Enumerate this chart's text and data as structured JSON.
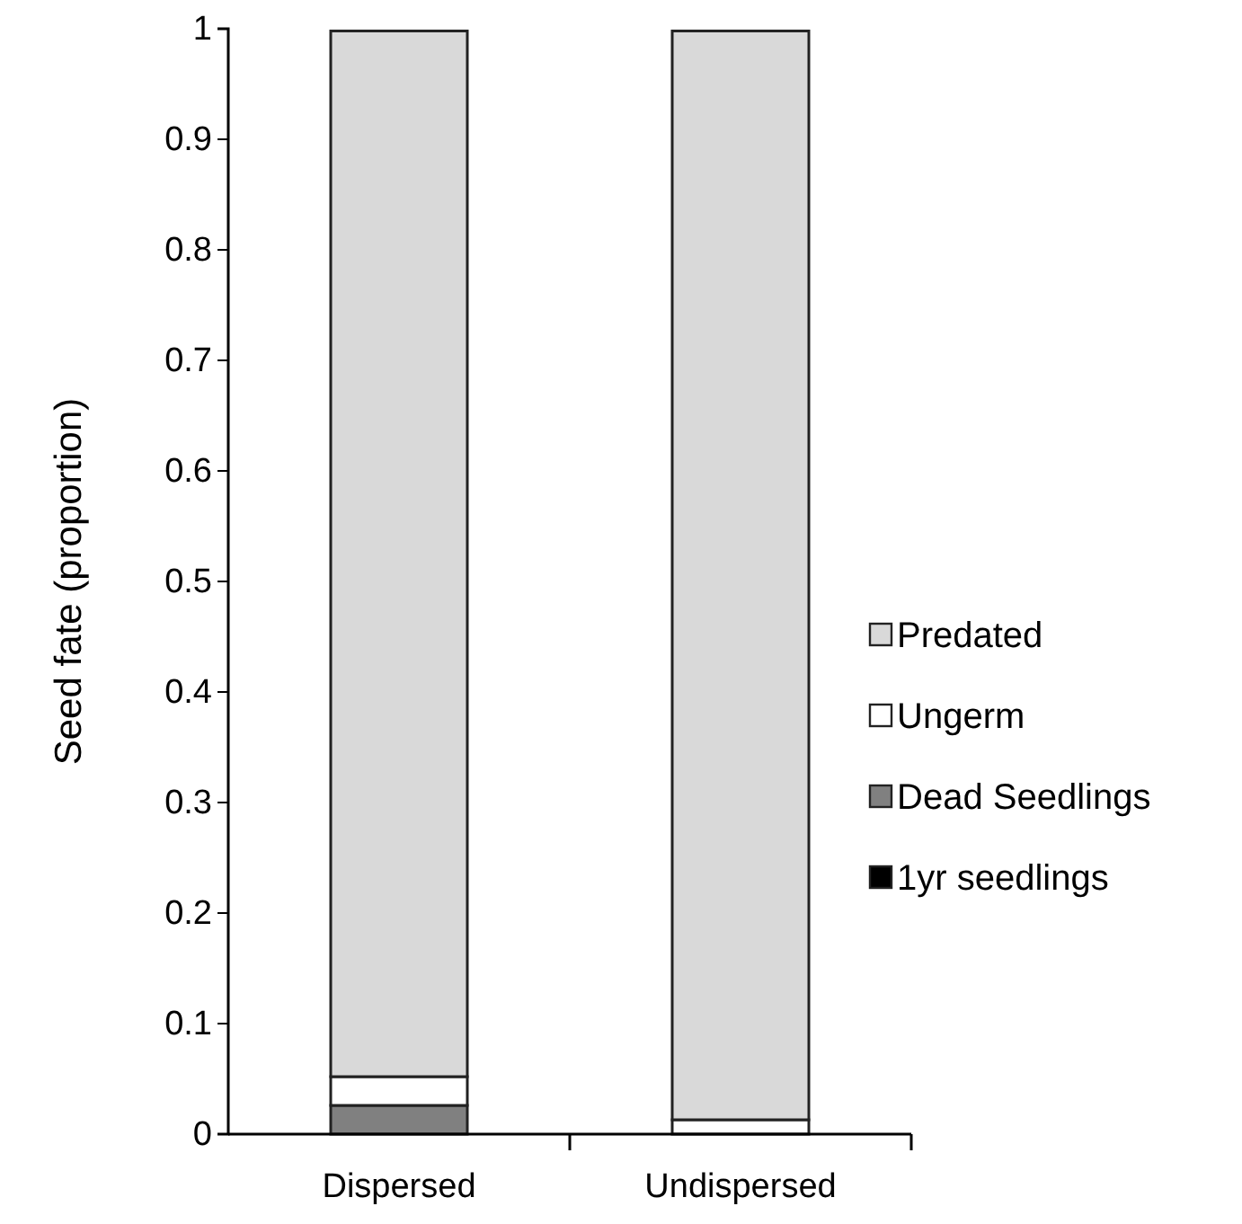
{
  "chart_data": {
    "type": "bar",
    "stacked": true,
    "ylabel": "Seed fate (proportion)",
    "categories": [
      "Dispersed",
      "Undispersed"
    ],
    "series": [
      {
        "name": "1yr seedlings",
        "color": "#000000",
        "values": [
          null,
          null
        ]
      },
      {
        "name": "Dead Seedlings",
        "color": "#808080",
        "values": [
          0.026,
          0
        ]
      },
      {
        "name": "Ungerm",
        "color": "#ffffff",
        "values": [
          0.026,
          0.013
        ]
      },
      {
        "name": "Predated",
        "color": "#d9d9d9",
        "values": [
          0.946,
          0.985
        ]
      }
    ],
    "ylim": [
      0,
      1
    ],
    "yticks": [
      0,
      0.1,
      0.2,
      0.3,
      0.4,
      0.5,
      0.6,
      0.7,
      0.8,
      0.9,
      1
    ],
    "grid": false,
    "legend": "right"
  }
}
